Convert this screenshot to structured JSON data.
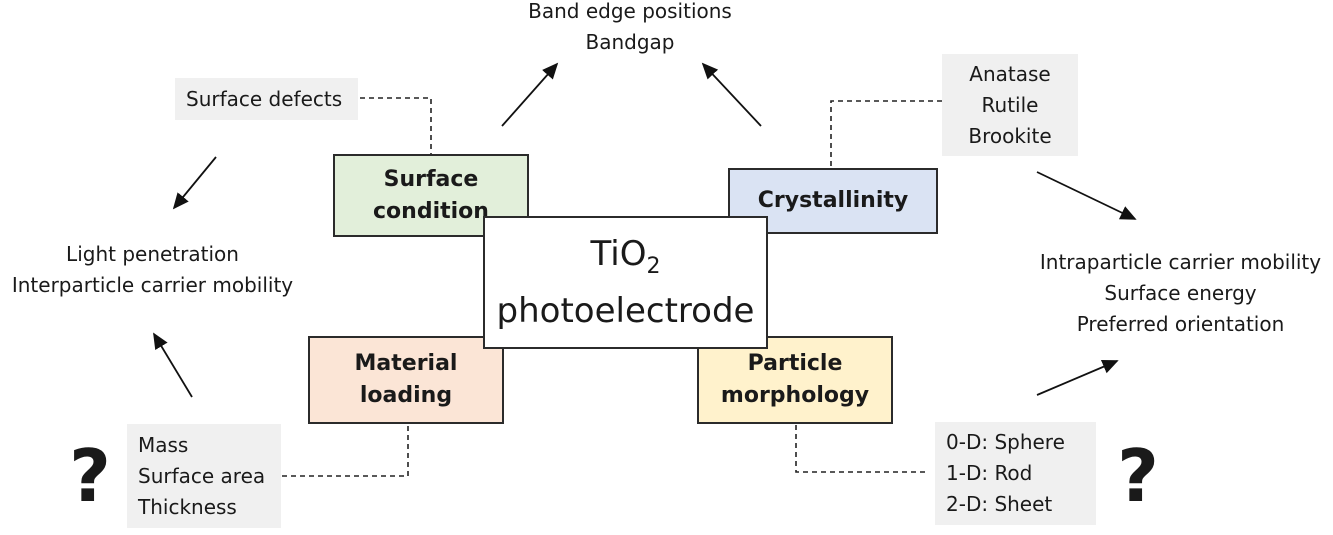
{
  "center": {
    "line1": "TiO",
    "line1_sub": "2",
    "line2": "photoelectrode"
  },
  "boxes": {
    "surface_condition": {
      "line1": "Surface",
      "line2": "condition",
      "color": "#e2efda"
    },
    "crystallinity": {
      "label": "Crystallinity",
      "color": "#dae3f3"
    },
    "material_loading": {
      "line1": "Material",
      "line2": "loading",
      "color": "#fbe5d6"
    },
    "particle_morphology": {
      "line1": "Particle",
      "line2": "morphology",
      "color": "#fff2cc"
    }
  },
  "details": {
    "surface_defects": "Surface defects",
    "crystal_phases": [
      "Anatase",
      "Rutile",
      "Brookite"
    ],
    "loading_params": [
      "Mass",
      "Surface area",
      "Thickness"
    ],
    "morphologies": [
      "0-D: Sphere",
      "1-D: Rod",
      "2-D: Sheet"
    ]
  },
  "properties": {
    "top": [
      "Band edge positions",
      "Bandgap"
    ],
    "left": [
      "Light penetration",
      "Interparticle carrier mobility"
    ],
    "right": [
      "Intraparticle carrier mobility",
      "Surface energy",
      "Preferred orientation"
    ]
  },
  "question_mark": "?"
}
